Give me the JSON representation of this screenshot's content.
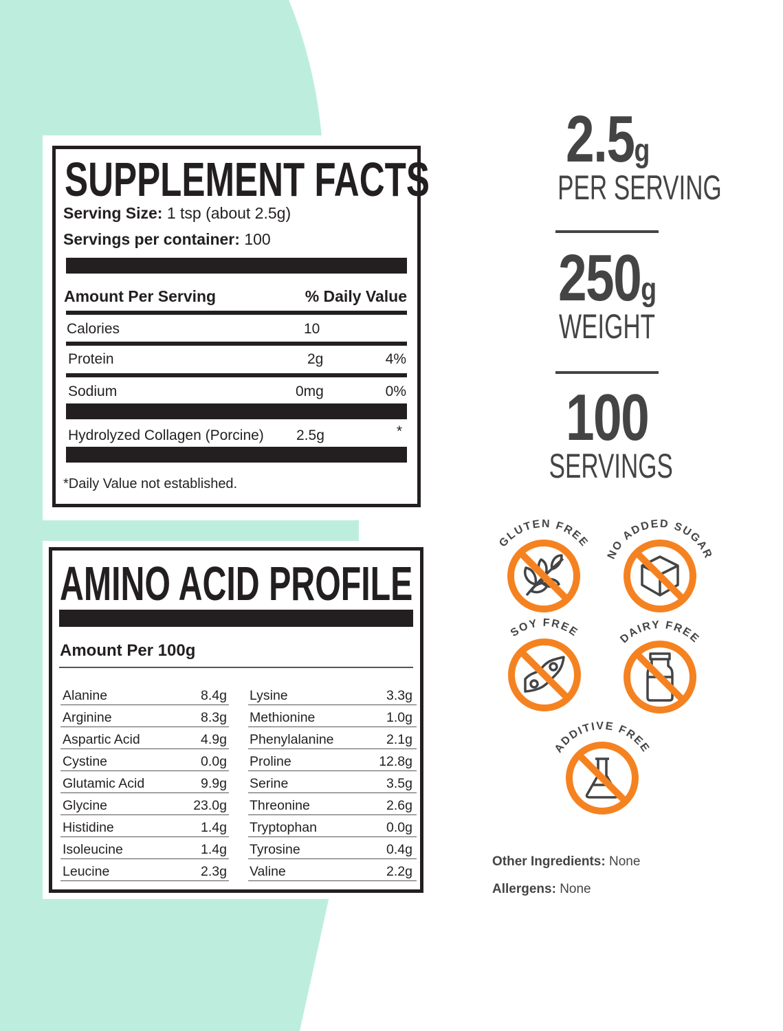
{
  "colors": {
    "mint": "#bdeedd",
    "ink": "#231f20",
    "stat_gray": "#444444",
    "badge_orange": "#f58220"
  },
  "supplement_facts": {
    "title": "SUPPLEMENT FACTS",
    "serving_size_label": "Serving Size:",
    "serving_size_value": "1 tsp (about 2.5g)",
    "servings_label": "Servings per container:",
    "servings_value": "100",
    "amount_header": "Amount Per Serving",
    "dv_header": "% Daily Value",
    "rows": [
      {
        "name": "Calories",
        "amount": "10",
        "dv": ""
      },
      {
        "name": "Protein",
        "amount": "2g",
        "dv": "4%"
      },
      {
        "name": "Sodium",
        "amount": "0mg",
        "dv": "0%"
      },
      {
        "name": "Hydrolyzed Collagen (Porcine)",
        "amount": "2.5g",
        "dv": "*"
      }
    ],
    "footnote": "*Daily Value not established."
  },
  "amino_profile": {
    "title": "AMINO ACID PROFILE",
    "subtitle": "Amount Per 100g",
    "left": [
      [
        "Alanine",
        "8.4g"
      ],
      [
        "Arginine",
        "8.3g"
      ],
      [
        "Aspartic Acid",
        "4.9g"
      ],
      [
        "Cystine",
        "0.0g"
      ],
      [
        "Glutamic Acid",
        "9.9g"
      ],
      [
        "Glycine",
        "23.0g"
      ],
      [
        "Histidine",
        "1.4g"
      ],
      [
        "Isoleucine",
        "1.4g"
      ],
      [
        "Leucine",
        "2.3g"
      ]
    ],
    "right": [
      [
        "Lysine",
        "3.3g"
      ],
      [
        "Methionine",
        "1.0g"
      ],
      [
        "Phenylalanine",
        "2.1g"
      ],
      [
        "Proline",
        "12.8g"
      ],
      [
        "Serine",
        "3.5g"
      ],
      [
        "Threonine",
        "2.6g"
      ],
      [
        "Tryptophan",
        "0.0g"
      ],
      [
        "Tyrosine",
        "0.4g"
      ],
      [
        "Valine",
        "2.2g"
      ]
    ]
  },
  "stats": [
    {
      "value": "2.5",
      "unit": "g",
      "label": "PER SERVING"
    },
    {
      "value": "250",
      "unit": "g",
      "label": "WEIGHT"
    },
    {
      "value": "100",
      "unit": "",
      "label": "SERVINGS"
    }
  ],
  "badges": [
    {
      "label": "GLUTEN FREE",
      "icon": "wheat-icon"
    },
    {
      "label": "NO ADDED SUGAR",
      "icon": "sugar-cube-icon"
    },
    {
      "label": "SOY FREE",
      "icon": "soybean-icon"
    },
    {
      "label": "DAIRY FREE",
      "icon": "milk-bottle-icon"
    },
    {
      "label": "ADDITIVE FREE",
      "icon": "flask-icon"
    }
  ],
  "other": {
    "ingredients_label": "Other Ingredients:",
    "ingredients_value": "None",
    "allergens_label": "Allergens:",
    "allergens_value": "None"
  }
}
